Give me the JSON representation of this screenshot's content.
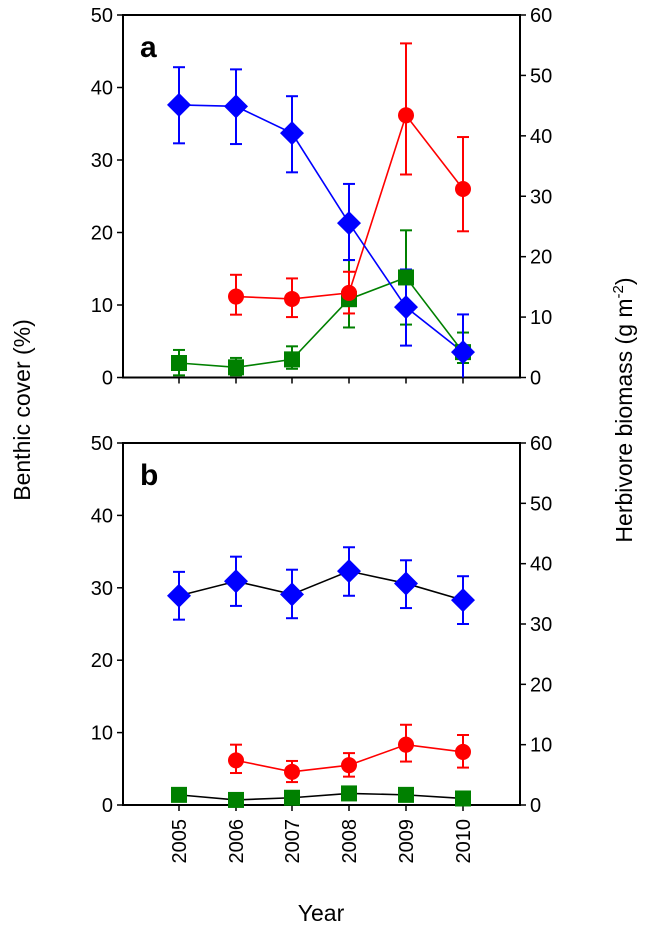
{
  "chart_data": [
    {
      "type": "line",
      "panel": "a",
      "title": "",
      "panel_label": "a",
      "x": [
        2005,
        2006,
        2007,
        2008,
        2009,
        2010
      ],
      "xlabel": "",
      "ylabel": "Benthic cover (%)",
      "ylabel_right": "Herbivore biomass (g m-2)",
      "ylim": [
        0,
        50
      ],
      "ylim_right": [
        0,
        60
      ],
      "yticks": [
        "0",
        "10",
        "20",
        "30",
        "40",
        "50"
      ],
      "yticks_right": [
        "0",
        "10",
        "20",
        "30",
        "40",
        "50",
        "60"
      ],
      "grid": false,
      "series": [
        {
          "name": "blue-diamond",
          "axis": "left",
          "marker": "diamond",
          "marker_color": "#0000ff",
          "line_color": "#0000ff",
          "values": [
            37.6,
            37.4,
            33.7,
            21.3,
            9.7,
            3.5
          ],
          "err_low": [
            32.3,
            32.2,
            28.3,
            16.2,
            4.4,
            0
          ],
          "err_high": [
            42.8,
            42.5,
            38.8,
            26.7,
            14.9,
            8.7
          ]
        },
        {
          "name": "red-circle",
          "axis": "right",
          "marker": "circle",
          "marker_color": "#ff0000",
          "line_color": "#ff0000",
          "values": [
            null,
            13.4,
            13.0,
            14.0,
            43.4,
            31.2
          ],
          "err_low": [
            null,
            10.4,
            10.0,
            10.6,
            33.6,
            24.2
          ],
          "err_high": [
            null,
            17.0,
            16.4,
            17.5,
            55.3,
            39.8
          ]
        },
        {
          "name": "green-square",
          "axis": "left",
          "marker": "square",
          "marker_color": "#008000",
          "line_color": "#008000",
          "values": [
            2.0,
            1.4,
            2.5,
            10.8,
            13.8,
            3.5
          ],
          "err_low": [
            0.3,
            0.3,
            1.2,
            6.9,
            7.3,
            2.0
          ],
          "err_high": [
            3.8,
            2.7,
            4.3,
            16.2,
            20.3,
            6.2
          ]
        }
      ]
    },
    {
      "type": "line",
      "panel": "b",
      "title": "",
      "panel_label": "b",
      "x": [
        2005,
        2006,
        2007,
        2008,
        2009,
        2010
      ],
      "xlabel": "Year",
      "xticks": [
        "2005",
        "2006",
        "2007",
        "2008",
        "2009",
        "2010"
      ],
      "ylabel": "Benthic cover (%)",
      "ylabel_right": "Herbivore biomass (g m-2)",
      "ylim": [
        0,
        50
      ],
      "ylim_right": [
        0,
        60
      ],
      "yticks": [
        "0",
        "10",
        "20",
        "30",
        "40",
        "50"
      ],
      "yticks_right": [
        "0",
        "10",
        "20",
        "30",
        "40",
        "50",
        "60"
      ],
      "grid": false,
      "series": [
        {
          "name": "blue-diamond",
          "axis": "left",
          "marker": "diamond",
          "marker_color": "#0000ff",
          "line_color": "#000000",
          "values": [
            28.9,
            30.9,
            29.1,
            32.3,
            30.6,
            28.3
          ],
          "err_low": [
            25.6,
            27.5,
            25.8,
            28.9,
            27.2,
            25.0
          ],
          "err_high": [
            32.2,
            34.3,
            32.5,
            35.6,
            33.8,
            31.6
          ]
        },
        {
          "name": "red-circle",
          "axis": "right",
          "marker": "circle",
          "marker_color": "#ff0000",
          "line_color": "#ff0000",
          "values": [
            null,
            7.4,
            5.5,
            6.6,
            10.0,
            8.8
          ],
          "err_low": [
            null,
            5.3,
            3.8,
            4.7,
            7.2,
            6.2
          ],
          "err_high": [
            null,
            10.0,
            7.3,
            8.6,
            13.3,
            11.6
          ]
        },
        {
          "name": "green-square",
          "axis": "left",
          "marker": "square",
          "marker_color": "#008000",
          "line_color": "#000000",
          "values": [
            1.4,
            0.7,
            1.0,
            1.6,
            1.4,
            0.9
          ],
          "err_low": [
            null,
            null,
            null,
            null,
            null,
            null
          ],
          "err_high": [
            null,
            null,
            null,
            null,
            null,
            null
          ]
        }
      ]
    }
  ],
  "labels": {
    "left_axis": "Benthic cover (%)",
    "right_axis_main": "Herbivore biomass (g m",
    "right_axis_sup": "-2",
    "right_axis_close": ")",
    "x_axis": "Year",
    "panel_a": "a",
    "panel_b": "b"
  }
}
